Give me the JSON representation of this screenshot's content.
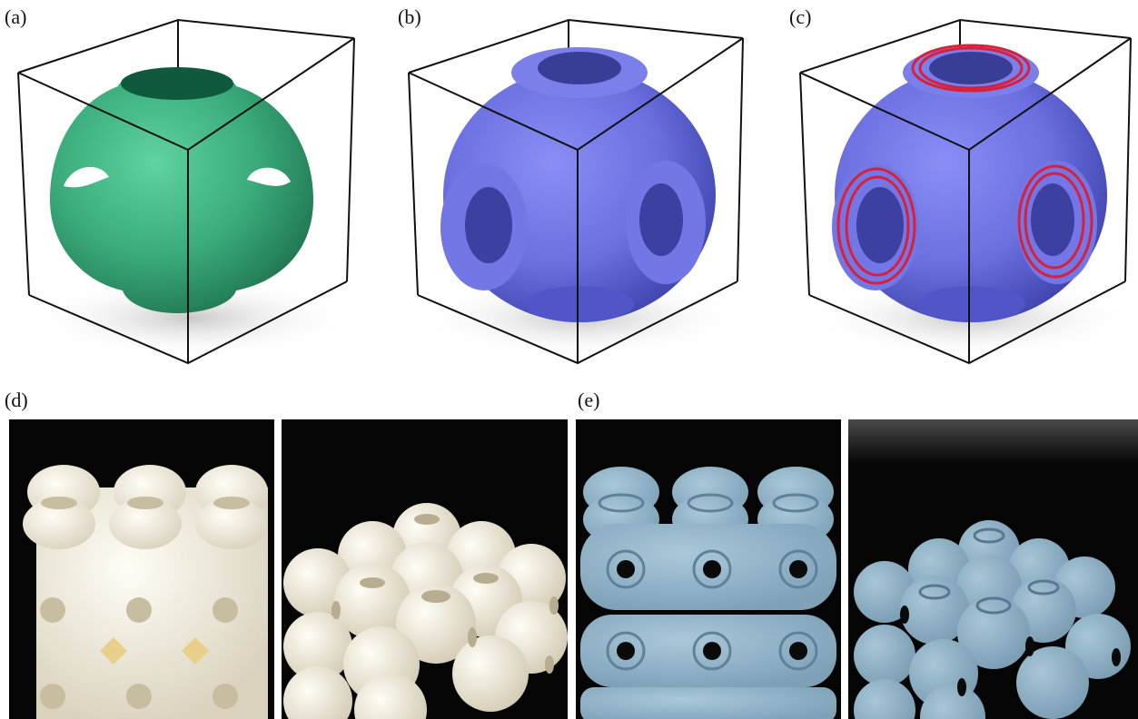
{
  "figure": {
    "labels": {
      "a": "(a)",
      "b": "(b)",
      "c": "(c)",
      "d": "(d)",
      "e": "(e)"
    },
    "panels": {
      "a": {
        "object": "single-unit-cell-render",
        "color": "#3aaa7a"
      },
      "b": {
        "object": "thickened-unit-cell-render",
        "color": "#6b6fe0"
      },
      "c": {
        "object": "thickened-unit-cell-with-rings",
        "color": "#6b6fe0",
        "ring_color": "#d8203a"
      },
      "d": {
        "object": "printed-lattice-photos-white",
        "color": "#f4f0e4",
        "background": "#050505"
      },
      "e": {
        "object": "printed-lattice-photos-blue",
        "color": "#8fb3c8",
        "background": "#050505"
      }
    }
  }
}
